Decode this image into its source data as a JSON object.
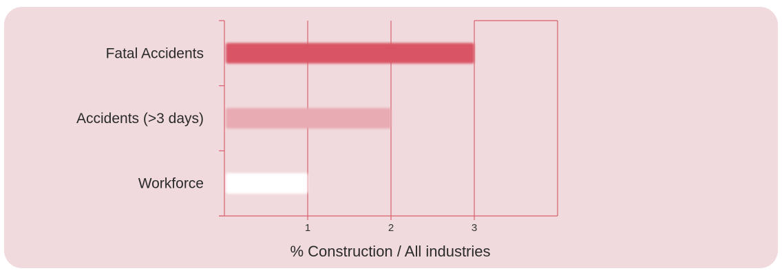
{
  "chart_data": {
    "type": "bar",
    "orientation": "horizontal",
    "categories": [
      "Fatal Accidents",
      "Accidents (>3 days)",
      "Workforce"
    ],
    "values": [
      3,
      2,
      1
    ],
    "xlabel": "% Construction / All industries",
    "ylabel": "",
    "title": "",
    "xlim": [
      0,
      4
    ],
    "xticks": [
      1,
      2,
      3
    ],
    "xtick_labels": [
      "1",
      "2",
      "3"
    ],
    "grid": "vertical",
    "legend": "none",
    "colors": {
      "background": "#f0dadd",
      "grid": "#d9606e",
      "bars": [
        "#d95565",
        "#e8aab3",
        "#ffffff"
      ]
    }
  }
}
